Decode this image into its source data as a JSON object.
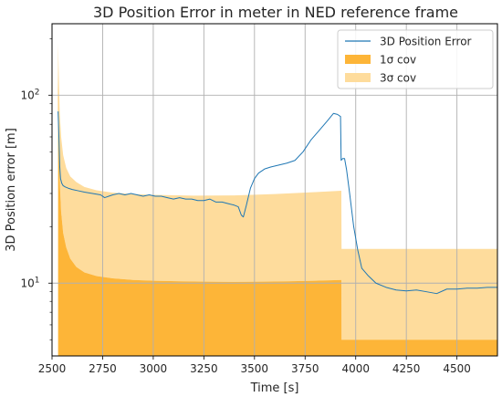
{
  "chart_data": {
    "type": "area",
    "title": "3D Position Error in meter in NED reference frame",
    "xlabel": "Time [s]",
    "ylabel": "3D Position error [m]",
    "xlim": [
      2500,
      4700
    ],
    "ylim": [
      4.1,
      240
    ],
    "yscale": "log",
    "grid": true,
    "legend_position": "top-right",
    "x_ticks": [
      2500,
      2750,
      3000,
      3250,
      3500,
      3750,
      4000,
      4250,
      4500
    ],
    "y_ticks": [
      {
        "value": 10,
        "label": "10^1"
      },
      {
        "value": 100,
        "label": "10^2"
      }
    ],
    "series": [
      {
        "name": "3D Position Error",
        "kind": "line",
        "color": "#1f77b4",
        "x": [
          2530,
          2534,
          2538,
          2542,
          2548,
          2555,
          2565,
          2580,
          2600,
          2630,
          2660,
          2700,
          2740,
          2760,
          2780,
          2800,
          2830,
          2860,
          2890,
          2920,
          2950,
          2980,
          3010,
          3040,
          3070,
          3100,
          3130,
          3160,
          3190,
          3220,
          3250,
          3280,
          3310,
          3340,
          3370,
          3400,
          3420,
          3435,
          3445,
          3460,
          3480,
          3500,
          3520,
          3550,
          3580,
          3620,
          3660,
          3700,
          3740,
          3780,
          3820,
          3860,
          3890,
          3910,
          3925,
          3928,
          3935,
          3945,
          3955,
          3970,
          3990,
          4010,
          4030,
          4060,
          4100,
          4150,
          4200,
          4250,
          4300,
          4350,
          4400,
          4450,
          4500,
          4550,
          4600,
          4650,
          4700
        ],
        "values": [
          82,
          60,
          42,
          36,
          34,
          33,
          32.5,
          32,
          31.5,
          31,
          30.5,
          30,
          29.5,
          28.5,
          29,
          29.5,
          30,
          29.5,
          30,
          29.5,
          29,
          29.5,
          29,
          29,
          28.5,
          28,
          28.5,
          28,
          28,
          27.5,
          27.5,
          28,
          27,
          27,
          26.5,
          26,
          25.5,
          23,
          22.5,
          26,
          32,
          36,
          38.5,
          40.5,
          41.5,
          42.5,
          43.5,
          45,
          50,
          58,
          65,
          73,
          80,
          79,
          77,
          45,
          46,
          46,
          40,
          30,
          20,
          15,
          12,
          11,
          10,
          9.5,
          9.2,
          9.1,
          9.2,
          9.0,
          8.8,
          9.3,
          9.3,
          9.4,
          9.4,
          9.5,
          9.5
        ]
      },
      {
        "name": "1σ cov",
        "kind": "band",
        "color": "#fdb538",
        "x": [
          2530,
          2534,
          2538,
          2545,
          2555,
          2570,
          2590,
          2620,
          2660,
          2720,
          2800,
          2900,
          3000,
          3200,
          3400,
          3600,
          3800,
          3929,
          3930,
          4700
        ],
        "upper": [
          155,
          60,
          35,
          24,
          18.5,
          15.5,
          13.5,
          12.2,
          11.4,
          10.9,
          10.6,
          10.4,
          10.3,
          10.2,
          10.15,
          10.2,
          10.3,
          10.4,
          5.0,
          5.0
        ],
        "lower": [
          4.1,
          4.1,
          4.1,
          4.1,
          4.1,
          4.1,
          4.1,
          4.1,
          4.1,
          4.1,
          4.1,
          4.1,
          4.1,
          4.1,
          4.1,
          4.1,
          4.1,
          4.1,
          4.1,
          4.1
        ]
      },
      {
        "name": "3σ cov",
        "kind": "band",
        "color": "#fedc9c",
        "x": [
          2530,
          2534,
          2538,
          2545,
          2555,
          2570,
          2590,
          2620,
          2660,
          2720,
          2800,
          2900,
          3000,
          3200,
          3400,
          3600,
          3800,
          3929,
          3930,
          4700
        ],
        "upper": [
          190,
          120,
          80,
          60,
          48,
          41,
          37,
          34.5,
          32.5,
          31.2,
          30.3,
          29.8,
          29.5,
          29.2,
          29.3,
          29.8,
          30.5,
          31,
          15.2,
          15.2
        ],
        "lower": [
          155,
          60,
          35,
          24,
          18.5,
          15.5,
          13.5,
          12.2,
          11.4,
          10.9,
          10.6,
          10.4,
          10.3,
          10.2,
          10.15,
          10.2,
          10.3,
          10.4,
          5.0,
          5.0
        ]
      }
    ]
  }
}
